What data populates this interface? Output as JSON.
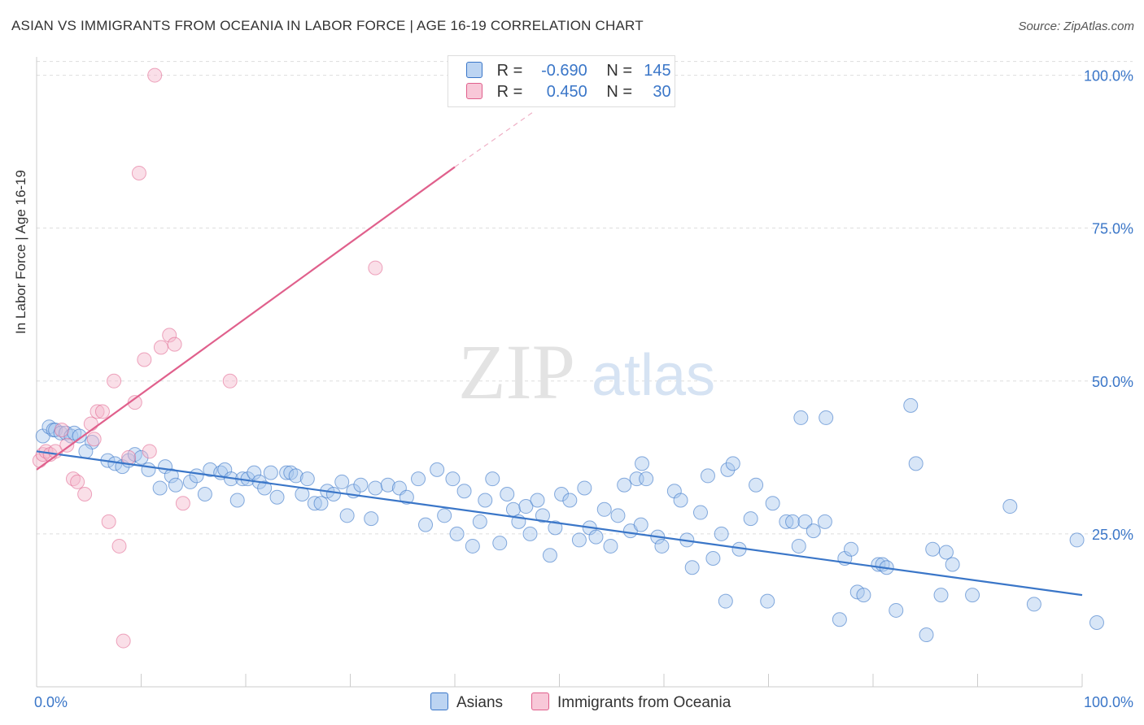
{
  "title": "ASIAN VS IMMIGRANTS FROM OCEANIA IN LABOR FORCE | AGE 16-19 CORRELATION CHART",
  "source": "Source: ZipAtlas.com",
  "watermark": {
    "zip": "ZIP",
    "atlas": "atlas"
  },
  "colors": {
    "asians": "#3a76c8",
    "asians_fill": "#a8c7ee",
    "oceania": "#e0608c",
    "oceania_fill": "#f5b8cc",
    "axis_text": "#3a76c8",
    "grid": "#dddddd"
  },
  "legend": {
    "r_label": "R =",
    "n_label": "N =",
    "rows": [
      {
        "r": "-0.690",
        "n": "145"
      },
      {
        "r": "0.450",
        "n": "30"
      }
    ]
  },
  "bottom_legend": {
    "asians": "Asians",
    "oceania": "Immigrants from Oceania"
  },
  "chart_data": {
    "type": "scatter",
    "ylabel": "In Labor Force | Age 16-19",
    "xlim": [
      0,
      100
    ],
    "ylim": [
      0,
      103
    ],
    "x_tick_labels": {
      "left": "0.0%",
      "right": "100.0%"
    },
    "y_ticks": [
      25,
      50,
      75,
      100
    ],
    "y_tick_labels": [
      "25.0%",
      "50.0%",
      "75.0%",
      "100.0%"
    ],
    "grid": "horizontal dashed",
    "series": [
      {
        "name": "Asians",
        "r": -0.69,
        "n": 145,
        "trend": {
          "x": [
            0,
            100
          ],
          "y": [
            38.5,
            15.0
          ]
        },
        "points": [
          [
            0.6,
            41
          ],
          [
            1.2,
            42.5
          ],
          [
            1.6,
            42
          ],
          [
            1.8,
            42
          ],
          [
            2.3,
            41.5
          ],
          [
            2.8,
            41.5
          ],
          [
            3.3,
            41
          ],
          [
            3.6,
            41.5
          ],
          [
            4.1,
            41
          ],
          [
            5.3,
            40
          ],
          [
            4.7,
            38.5
          ],
          [
            6.8,
            37
          ],
          [
            7.5,
            36.5
          ],
          [
            8.2,
            36
          ],
          [
            8.8,
            37
          ],
          [
            9.4,
            38
          ],
          [
            10,
            37.5
          ],
          [
            10.7,
            35.5
          ],
          [
            11.8,
            32.5
          ],
          [
            12.3,
            36
          ],
          [
            12.9,
            34.5
          ],
          [
            13.3,
            33
          ],
          [
            14.7,
            33.5
          ],
          [
            15.3,
            34.5
          ],
          [
            16.1,
            31.5
          ],
          [
            16.6,
            35.5
          ],
          [
            17.6,
            35
          ],
          [
            18,
            35.5
          ],
          [
            18.6,
            34
          ],
          [
            19.2,
            30.5
          ],
          [
            19.7,
            34
          ],
          [
            20.2,
            34
          ],
          [
            20.8,
            35
          ],
          [
            21.3,
            33.5
          ],
          [
            21.8,
            32.5
          ],
          [
            22.4,
            35
          ],
          [
            23,
            31
          ],
          [
            23.9,
            35
          ],
          [
            24.3,
            35
          ],
          [
            24.8,
            34.5
          ],
          [
            25.4,
            31.5
          ],
          [
            25.9,
            34
          ],
          [
            26.6,
            30
          ],
          [
            27.2,
            30
          ],
          [
            27.8,
            32
          ],
          [
            28.4,
            31.5
          ],
          [
            29.2,
            33.5
          ],
          [
            29.7,
            28
          ],
          [
            30.3,
            32
          ],
          [
            31,
            33
          ],
          [
            32,
            27.5
          ],
          [
            32.4,
            32.5
          ],
          [
            33.6,
            33
          ],
          [
            34.7,
            32.5
          ],
          [
            35.4,
            31
          ],
          [
            36.5,
            34
          ],
          [
            37.2,
            26.5
          ],
          [
            38.3,
            35.5
          ],
          [
            39,
            28
          ],
          [
            39.8,
            34
          ],
          [
            40.2,
            25
          ],
          [
            40.9,
            32
          ],
          [
            41.7,
            23
          ],
          [
            42.4,
            27
          ],
          [
            42.9,
            30.5
          ],
          [
            43.6,
            34
          ],
          [
            44.3,
            23.5
          ],
          [
            45,
            31.5
          ],
          [
            45.6,
            29
          ],
          [
            46.1,
            27
          ],
          [
            46.8,
            29.5
          ],
          [
            47.2,
            25
          ],
          [
            47.9,
            30.5
          ],
          [
            48.4,
            28
          ],
          [
            49.1,
            21.5
          ],
          [
            49.6,
            26
          ],
          [
            50.2,
            31.5
          ],
          [
            51,
            30.5
          ],
          [
            51.9,
            24
          ],
          [
            52.4,
            32.5
          ],
          [
            52.9,
            26
          ],
          [
            53.5,
            24.5
          ],
          [
            54.3,
            29
          ],
          [
            54.9,
            23
          ],
          [
            55.6,
            28
          ],
          [
            56.2,
            33
          ],
          [
            56.8,
            25.5
          ],
          [
            57.4,
            34
          ],
          [
            57.9,
            36.5
          ],
          [
            58.3,
            34
          ],
          [
            59.4,
            24.5
          ],
          [
            59.8,
            23
          ],
          [
            61,
            32
          ],
          [
            61.6,
            30.5
          ],
          [
            62.2,
            24
          ],
          [
            62.7,
            19.5
          ],
          [
            63.5,
            28.5
          ],
          [
            64.2,
            34.5
          ],
          [
            64.7,
            21
          ],
          [
            65.5,
            25
          ],
          [
            66.1,
            35.5
          ],
          [
            66.6,
            36.5
          ],
          [
            67.2,
            22.5
          ],
          [
            68.3,
            27.5
          ],
          [
            68.8,
            33
          ],
          [
            69.9,
            14
          ],
          [
            70.4,
            30
          ],
          [
            71.7,
            27
          ],
          [
            72.3,
            27
          ],
          [
            72.9,
            23
          ],
          [
            73.5,
            27
          ],
          [
            74.3,
            25.5
          ],
          [
            75.4,
            27
          ],
          [
            76.8,
            11
          ],
          [
            77.3,
            21
          ],
          [
            77.9,
            22.5
          ],
          [
            78.5,
            15.5
          ],
          [
            79.1,
            15
          ],
          [
            80.5,
            20
          ],
          [
            80.9,
            20
          ],
          [
            81.3,
            19.5
          ],
          [
            82.2,
            12.5
          ],
          [
            83.6,
            46
          ],
          [
            84.1,
            36.5
          ],
          [
            85.1,
            8.5
          ],
          [
            85.7,
            22.5
          ],
          [
            86.5,
            15
          ],
          [
            87,
            22
          ],
          [
            87.6,
            20
          ],
          [
            89.5,
            15
          ],
          [
            93.1,
            29.5
          ],
          [
            95.4,
            13.5
          ],
          [
            99.5,
            24
          ],
          [
            101.4,
            10.5
          ],
          [
            73.1,
            44
          ],
          [
            75.5,
            44
          ],
          [
            65.9,
            14
          ],
          [
            57.8,
            26.5
          ]
        ]
      },
      {
        "name": "Immigrants from Oceania",
        "r": 0.45,
        "n": 30,
        "trend": {
          "x": [
            0,
            40
          ],
          "y": [
            35.5,
            85
          ]
        },
        "trend_dashed": {
          "x": [
            40,
            47.5
          ],
          "y": [
            85,
            94
          ]
        },
        "points": [
          [
            0.3,
            37
          ],
          [
            0.6,
            38
          ],
          [
            0.9,
            38.5
          ],
          [
            1.3,
            38
          ],
          [
            1.8,
            38.5
          ],
          [
            2.4,
            42
          ],
          [
            2.9,
            39.5
          ],
          [
            3.5,
            34
          ],
          [
            3.9,
            33.5
          ],
          [
            4.6,
            31.5
          ],
          [
            5.2,
            43
          ],
          [
            5.8,
            45
          ],
          [
            6.3,
            45
          ],
          [
            6.9,
            27
          ],
          [
            7.4,
            50
          ],
          [
            7.9,
            23
          ],
          [
            8.3,
            7.5
          ],
          [
            8.8,
            37.5
          ],
          [
            9.4,
            46.5
          ],
          [
            9.8,
            84
          ],
          [
            10.3,
            53.5
          ],
          [
            10.8,
            38.5
          ],
          [
            11.3,
            100
          ],
          [
            11.9,
            55.5
          ],
          [
            12.7,
            57.5
          ],
          [
            13.2,
            56
          ],
          [
            14,
            30
          ],
          [
            18.5,
            50
          ],
          [
            32.4,
            68.5
          ],
          [
            5.5,
            40.5
          ]
        ]
      }
    ]
  }
}
